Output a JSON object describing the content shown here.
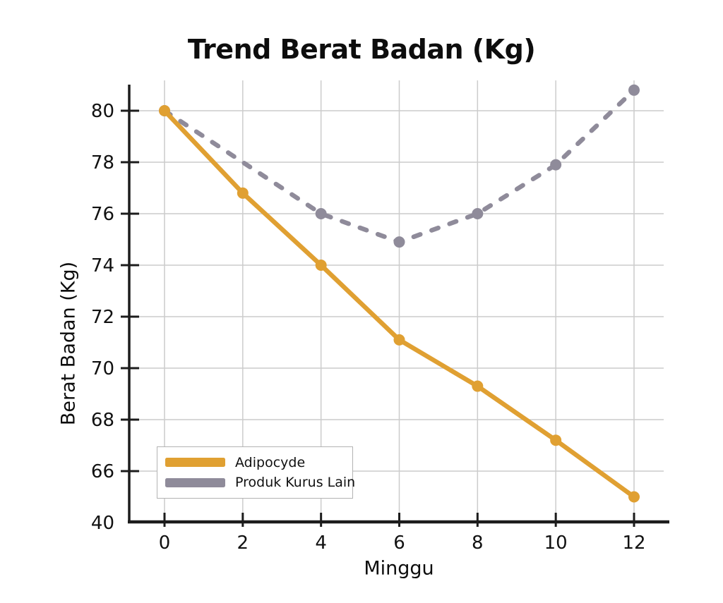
{
  "chart_data": {
    "type": "line",
    "title": "Trend Berat Badan (Kg)",
    "xlabel": "Minggu",
    "ylabel": "Berat Badan (Kg)",
    "grid": true,
    "legend_position": "lower-left",
    "x_ticks": [
      {
        "label": "0",
        "pos": 0
      },
      {
        "label": "2",
        "pos": 2
      },
      {
        "label": "4",
        "pos": 4
      },
      {
        "label": "6",
        "pos": 6
      },
      {
        "label": "8",
        "pos": 8
      },
      {
        "label": "10",
        "pos": 10
      },
      {
        "label": "12",
        "pos": 12
      }
    ],
    "y_ticks": [
      {
        "label": "80",
        "pos": 80
      },
      {
        "label": "78",
        "pos": 78
      },
      {
        "label": "76",
        "pos": 76
      },
      {
        "label": "74",
        "pos": 74
      },
      {
        "label": "72",
        "pos": 72
      },
      {
        "label": "70",
        "pos": 70
      },
      {
        "label": "68",
        "pos": 68
      },
      {
        "label": "66",
        "pos": 66
      },
      {
        "label": "40",
        "pos": 64,
        "grid": false,
        "tick": false
      }
    ],
    "xlim": [
      0,
      12
    ],
    "ylim_positions": [
      64,
      81.3
    ],
    "series": [
      {
        "name": "Adipocyde",
        "color": "#E0A032",
        "style": "solid",
        "x": [
          0,
          2,
          4,
          6,
          8,
          10,
          12
        ],
        "values": [
          80,
          76.8,
          74,
          71.1,
          69.3,
          67.2,
          65
        ]
      },
      {
        "name": "Produk Kurus Lain",
        "color": "#8F8B9A",
        "style": "dashed",
        "x": [
          0,
          4,
          6,
          8,
          10,
          12
        ],
        "values": [
          80,
          76,
          74.9,
          76,
          77.9,
          80.8
        ]
      }
    ]
  },
  "colors": {
    "grid": "#cccccc",
    "axis": "#1c1c1c",
    "text": "#111111",
    "background": "#ffffff"
  }
}
